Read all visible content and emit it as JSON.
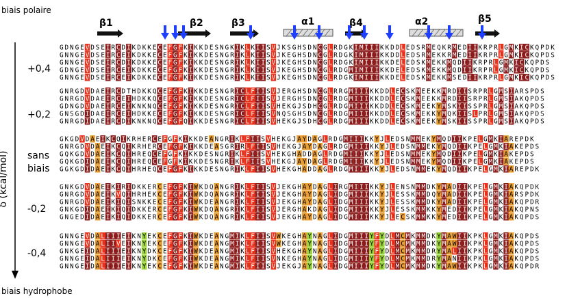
{
  "labels": {
    "top": "biais polaire",
    "bottom": "biais hydrophobe",
    "axis": "δ  (kcal/mol)",
    "groups": [
      "+0,4",
      "+0,2",
      "sans",
      "biais",
      "-0,2",
      "-0,4"
    ]
  },
  "secondary_structure": [
    "β1",
    "β2",
    "β3",
    "α1",
    "β4",
    "α2",
    "β5"
  ],
  "colors": {
    "dark_red": "#8b1a1a",
    "red": "#e8301a",
    "orange": "#e89c30",
    "yellow": "#f0e050",
    "green": "#9ad43a",
    "blue_arrow": "#1f3fff",
    "strand": "#111111",
    "helix_fill": "#dcdcdc"
  },
  "groups": [
    {
      "name": "+0,4",
      "sequences": [
        "GDNGEVDSEIRCDIKDKKECEFGFKIKKDESNGKIKLKIISVJKSGHSDNCGLRDGKIMIIIKKDDLEDSRMEQKRMEDIIKRPRLGMKICKQPDK",
        "GNNGEVDSEIRCEIKDKKECEFGFKIKKDESNGRIKLKIISVJKEGHSDNCGLRDGKIMIIIKKDDLEDSRMEKKRMEDIIKRPRLGMKICKQPDS",
        "GNNGEVDSEIRCDIKDKKECEFGFKIKKDESNGRIKLKIISVJKEGHSDNCGLRDGKIMIIIKKDELEDSKMEKKMQDIIKRPRLGMKICKQPDS",
        "GDNGEVDSEIRCEIKDKKECEFGFKIKKDESNGRIKLKIISVJKEGHSDNCGLRDGMIMIIIKKDELEDSKMEKKMQDIIKRPRLGMKICKQPDS",
        "GNNGEVDSEIRCEIKDKKECEFGFKIKKDESNGRIKLKIISVJKEGHSDNCGLRDGKIMIIIKKDELEDSKMEKKMSEDIIKRPRLGMKICKQPDS"
      ]
    },
    {
      "name": "+0,2",
      "sequences": [
        "GNRGDVDAEIRCDTHDKKQCEFGFKIKKDESNGRICLFIISVJERGHSDNCGLRRGMIIIKKDDLECSKMEEKKMRDIISRPRLGMSIARSPDS",
        "GNRGDVDAEIRCEIHDKKQCEFGFKIKKDESNGRICLFIISVJERGHSDNCGLRDGMIIIKKDDLECSKMEEKKMRDIISRPRLGMSIAKQPDS",
        "GDNGDVDAEIRCEIKNKNQCEFGFKIKKDESNGRICLFIISVHEKGJSDHCGLRDGMIIIKKDDLECSKMEEKYMSKIISSPRLGMSIAKQPDS",
        "GNSGDIDAEIRCEIHDKKECEFGFKIKKDESNGRICLFIISVNQSGHSDNCGLRDGMIIIKKDDLECSKMEKKYMQKIISLPRLGMSIAKQPDS",
        "GNRGDIDAEIRCDIKNKNQCEFGFQIKKDESNGRICLFIISVHEKGJSDHCGLRDGMIIIKKDDLECSKMEEKYMSKIISSPRLGMSIAKQPDS"
      ]
    },
    {
      "name": "sans biais",
      "sequences": [
        "GKGDVDAEIKCQIKRHERCEFGFKIKKDEANGRIKLFIISVHEKGJAYDAGLRDGMIIIKKYJLEDSNMMEKYMQDIIKPELGMKIAREPDK",
        "GNRGDVDAEIKCQIKRHERCEFGFKIKKDEASGRIRLFIISVHEKGJAYDAGLRDGMIIIKKYJLEDSNMMEKYMQDIIKPELGMKIAKEPDS",
        "GQKGDVDAEIKCQIHREQCEFGFKIKKDESNGRIKLFIISVHEKGHADDAGLRDGMIIIKKYJLEDSNMMEKYMQDIIKPELGMKIAKEPDS",
        "GQKGDIDAEIKCQIHREQCEFGFKIKKDESNGRIKLFIISVHEKGJAYDAGLRDGMIIIKKYJLEDSNMMEKYMQDIIKPELGMKIAKEPDS",
        "GGKGDIDAEIKCQIHRHEQCEFGFKIKKDESNGRIKLFIISVHEKGHADDAGLRDGMIIIKKYJLEDSNMMEKYMQDIIKPELGMKIAREPDK"
      ]
    },
    {
      "name": "-0,2",
      "sequences": [
        "GNKGDVDAEIKIRIDKKERCEFGFKIWKDQANGRIKLFIISVJEKGHAYDAGLIRGMIIIKKYJLENSNMMDKYMADIIKPELGMKIAKQPDK",
        "GNRGDVDAEIKVQIHRHEKCEFGFKIWKDQANGRIKLFIISVJEKGHAYDAGLIDGMIIIKKYJLESSKMMDQYMADIIKPELGMKIARSPDK",
        "GNRGDVDAEIKIQISNKKECEFGFKIWKDEANGRIKLFIISVJEKGHAYDAGLIDGMIIIKKYJLESSKMMDKYMADIIKPELGMKIAKQPDR",
        "GNKGDIDAEIKIQIDKKERCEFGFKIWKDQANGRIKLFIISVJERGHAKDAGLIDGMIIIKKYJLESSKMMKKYMEDIIKPELGMKIAKQPNS",
        "GNGEDIDAEIKIQIDKKERCEFGFKIWKDQANGRIKLFIISVJEKGHAYDAGLIDGMIIIKKYJLECSKMMKKYMEDIIKPELGMKIAKQPDS"
      ]
    },
    {
      "name": "-0,4",
      "sequences": [
        "GNNGEVDALIIIEIKNYEKCEFGFKIWKDEANGMIKLFIISVWKEGHAYNAGLIDGMIIIYFYDLMCMKMMDKYMAWIIKPKLGMKIAKQPDS",
        "GNNGEVDALIIVEIKNYEKCEFGFKIWKDEANGMIKLFIISVWKEGHAYNAGLIDGMIIIYFYDLMCMKMMDKYMAWIIKPKLGMKIAKQPDS",
        "GNKGEIDALIIIEIKNYDKCEFGFKIWKDEANGMIKLFIISVHEKGHAYNAGLIDGMIIIYFYDLMCMKMMDRYMALIIKPKLGMKIAKQPDS",
        "GNNGEIDALIIIEIKNYDKCEFGFKIWKDEANGMIKLFIISVNKEGHAYNAGLIDGMIIIYFYDLMCMKMMDRYMANIIKPKLGMKIAKQPDS",
        "GNNGEIDALIIIEIKNYEKCEFGFKIWKDEANGMIKLFIISVJEKGJAYNAGLIDGMIIIYFYDLMCMKMMDKYMAWIIKPKLGMKIAKQPDR"
      ]
    }
  ]
}
